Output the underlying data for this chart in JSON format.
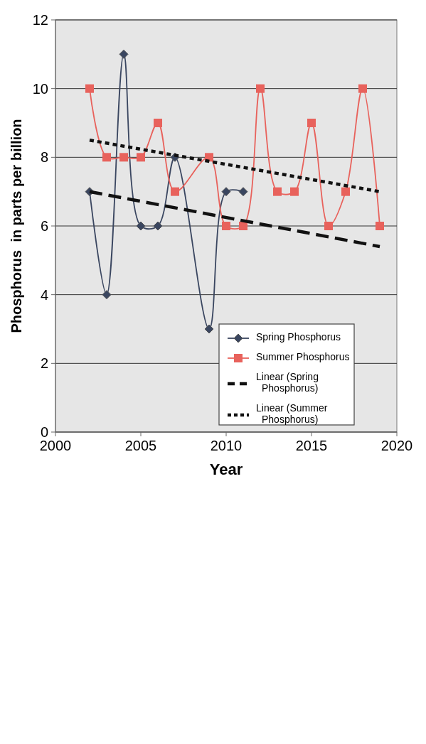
{
  "chart_data": {
    "type": "line",
    "xlabel": "Year",
    "ylabel": "Phosphorus  in parts per billion",
    "xlim": [
      2000,
      2020
    ],
    "xticks": [
      2000,
      2005,
      2010,
      2015,
      2020
    ],
    "ylim": [
      0,
      12
    ],
    "yticks": [
      0,
      2,
      4,
      6,
      8,
      10,
      12
    ],
    "grid": "y",
    "legend": "bottom right",
    "series": [
      {
        "name": "Spring Phosphorus",
        "color": "#3a4660",
        "marker": "diamond",
        "x": [
          2002,
          2003,
          2004,
          2005,
          2006,
          2007,
          2009,
          2010,
          2011
        ],
        "values": [
          7,
          4,
          11,
          6,
          6,
          8,
          3,
          7,
          7
        ]
      },
      {
        "name": "Summer Phosphorus",
        "color": "#e8625c",
        "marker": "square",
        "x": [
          2002,
          2003,
          2004,
          2005,
          2006,
          2007,
          2009,
          2010,
          2011,
          2012,
          2013,
          2014,
          2015,
          2016,
          2017,
          2018,
          2019
        ],
        "values": [
          10,
          8,
          8,
          8,
          9,
          7,
          8,
          6,
          6,
          10,
          7,
          7,
          9,
          6,
          7,
          10,
          6
        ]
      },
      {
        "name": "Linear (Spring Phosphorus)",
        "color": "#111111",
        "marker": "none",
        "line_style": "dashed",
        "x": [
          2002,
          2019
        ],
        "values": [
          7.0,
          5.4
        ]
      },
      {
        "name": "Linear (Summer Phosphorus)",
        "color": "#111111",
        "marker": "none",
        "line_style": "dotted",
        "x": [
          2002,
          2019
        ],
        "values": [
          8.5,
          7.0
        ]
      }
    ]
  }
}
